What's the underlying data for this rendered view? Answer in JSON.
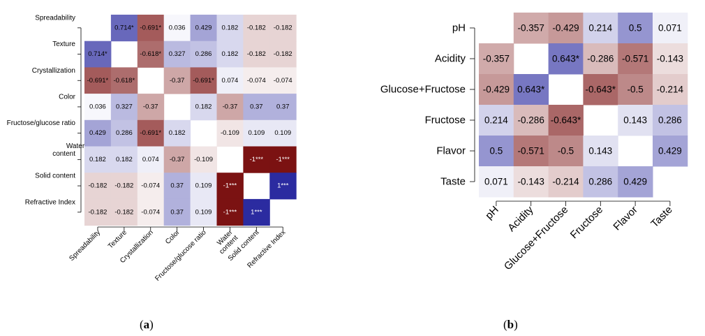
{
  "captions": {
    "a_open": "(",
    "a_letter": "a",
    "a_close": ")",
    "b_open": "(",
    "b_letter": "b",
    "b_close": ")"
  },
  "chart_data": [
    {
      "type": "heatmap",
      "id": "a",
      "title": "",
      "labels": [
        "Spreadability",
        "Texture",
        "Crystallization",
        "Color",
        "Fructose/glucose ratio",
        "Water content",
        "Solid content",
        "Refractive Index"
      ],
      "x_tick_labels": [
        "Spreadability",
        "Texture",
        "Crystallization",
        "Color",
        "Fructose/glucose ratio",
        "Water content",
        "Solid content",
        "Refractive Index"
      ],
      "values": [
        [
          null,
          0.714,
          -0.691,
          0.036,
          0.429,
          0.182,
          -0.182,
          -0.182
        ],
        [
          0.714,
          null,
          -0.618,
          0.327,
          0.286,
          0.182,
          -0.182,
          -0.182
        ],
        [
          -0.691,
          -0.618,
          null,
          -0.37,
          -0.691,
          0.074,
          -0.074,
          -0.074
        ],
        [
          0.036,
          0.327,
          -0.37,
          null,
          0.182,
          -0.37,
          0.37,
          0.37
        ],
        [
          0.429,
          0.286,
          -0.691,
          0.182,
          null,
          -0.109,
          0.109,
          0.109
        ],
        [
          0.182,
          0.182,
          0.074,
          -0.37,
          -0.109,
          null,
          -1,
          -1
        ],
        [
          -0.182,
          -0.182,
          -0.074,
          0.37,
          0.109,
          -1,
          null,
          1
        ],
        [
          -0.182,
          -0.182,
          -0.074,
          0.37,
          0.109,
          -1,
          1,
          null
        ]
      ],
      "cell_labels": [
        [
          "",
          "0.714*",
          "-0.691*",
          "0.036",
          "0.429",
          "0.182",
          "-0.182",
          "-0.182"
        ],
        [
          "0.714*",
          "",
          "-0.618*",
          "0.327",
          "0.286",
          "0.182",
          "-0.182",
          "-0.182"
        ],
        [
          "-0.691*",
          "-0.618*",
          "",
          "-0.37",
          "-0.691*",
          "0.074",
          "-0.074",
          "-0.074"
        ],
        [
          "0.036",
          "0.327",
          "-0.37",
          "",
          "0.182",
          "-0.37",
          "0.37",
          "0.37"
        ],
        [
          "0.429",
          "0.286",
          "-0.691*",
          "0.182",
          "",
          "-0.109",
          "0.109",
          "0.109"
        ],
        [
          "0.182",
          "0.182",
          "0.074",
          "-0.37",
          "-0.109",
          "",
          "-1***",
          "-1***"
        ],
        [
          "-0.182",
          "-0.182",
          "-0.074",
          "0.37",
          "0.109",
          "-1***",
          "",
          "1***"
        ],
        [
          "-0.182",
          "-0.182",
          "-0.074",
          "0.37",
          "0.109",
          "-1***",
          "1***",
          ""
        ]
      ],
      "color_scale": {
        "negative": "#7b1212",
        "zero": "#ffffff",
        "positive": "#2b2ba0"
      },
      "value_range": [
        -1,
        1
      ]
    },
    {
      "type": "heatmap",
      "id": "b",
      "title": "",
      "labels": [
        "pH",
        "Acidity",
        "Glucose+Fructose",
        "Fructose",
        "Flavor",
        "Taste"
      ],
      "values": [
        [
          null,
          -0.357,
          -0.429,
          0.214,
          0.5,
          0.071
        ],
        [
          -0.357,
          null,
          0.643,
          -0.286,
          -0.571,
          -0.143
        ],
        [
          -0.429,
          0.643,
          null,
          -0.643,
          -0.5,
          -0.214
        ],
        [
          0.214,
          -0.286,
          -0.643,
          null,
          0.143,
          0.286
        ],
        [
          0.5,
          -0.571,
          -0.5,
          0.143,
          null,
          0.429
        ],
        [
          0.071,
          -0.143,
          -0.214,
          0.286,
          0.429,
          null
        ]
      ],
      "cell_labels": [
        [
          "",
          "-0.357",
          "-0.429",
          "0.214",
          "0.5",
          "0.071"
        ],
        [
          "-0.357",
          "",
          "0.643*",
          "-0.286",
          "-0.571",
          "-0.143"
        ],
        [
          "-0.429",
          "0.643*",
          "",
          "-0.643*",
          "-0.5",
          "-0.214"
        ],
        [
          "0.214",
          "-0.286",
          "-0.643*",
          "",
          "0.143",
          "0.286"
        ],
        [
          "0.5",
          "-0.571",
          "-0.5",
          "0.143",
          "",
          "0.429"
        ],
        [
          "0.071",
          "-0.143",
          "-0.214",
          "0.286",
          "0.429",
          ""
        ]
      ],
      "color_scale": {
        "negative": "#7b1212",
        "zero": "#ffffff",
        "positive": "#2b2ba0"
      },
      "value_range": [
        -1,
        1
      ]
    }
  ]
}
